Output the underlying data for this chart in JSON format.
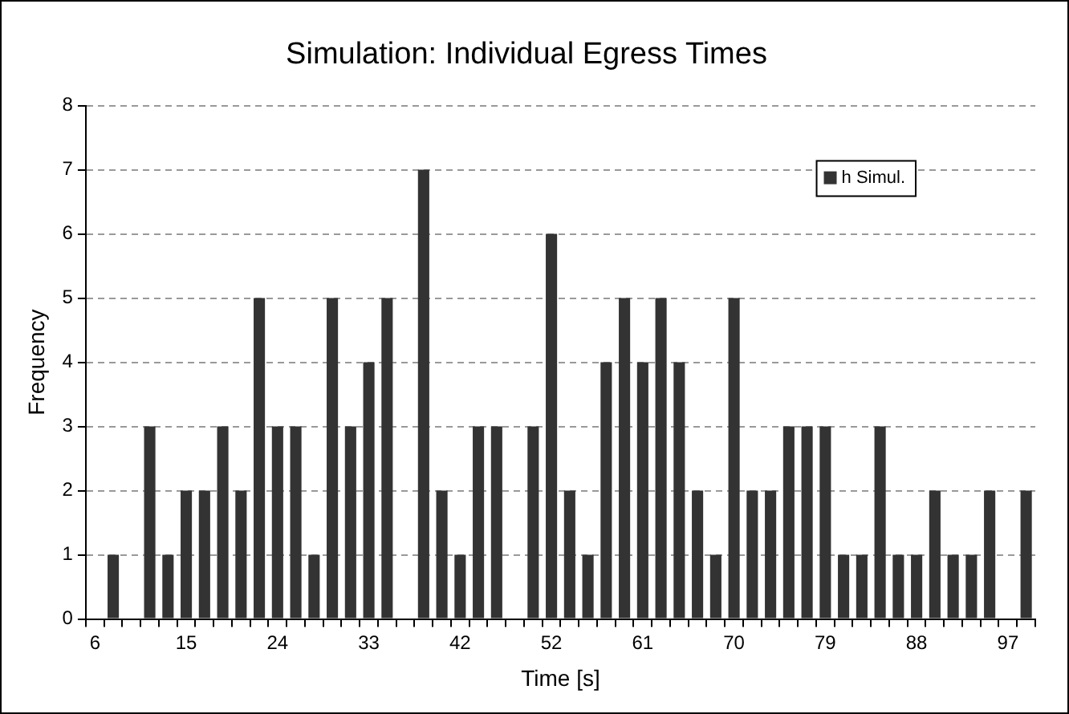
{
  "chart_data": {
    "type": "bar",
    "title": "Simulation: Individual Egress Times",
    "xlabel": "Time [s]",
    "ylabel": "Frequency",
    "categories": [
      "6",
      null,
      null,
      null,
      null,
      "15",
      null,
      null,
      null,
      null,
      "24",
      null,
      null,
      null,
      null,
      "33",
      null,
      null,
      null,
      null,
      "42",
      null,
      null,
      null,
      null,
      "52",
      null,
      null,
      null,
      null,
      "61",
      null,
      null,
      null,
      null,
      "70",
      null,
      null,
      null,
      null,
      "79",
      null,
      null,
      null,
      null,
      "88",
      null,
      null,
      null,
      null,
      "97",
      null
    ],
    "series": [
      {
        "name": "h Simul.",
        "color": "#333333",
        "values": [
          0,
          1,
          0,
          3,
          1,
          2,
          2,
          3,
          2,
          5,
          3,
          3,
          1,
          5,
          3,
          4,
          5,
          0,
          7,
          2,
          1,
          3,
          3,
          0,
          3,
          6,
          2,
          1,
          4,
          5,
          4,
          5,
          4,
          2,
          1,
          5,
          2,
          2,
          3,
          3,
          3,
          1,
          1,
          3,
          1,
          1,
          2,
          1,
          1,
          2,
          0,
          2
        ]
      }
    ],
    "ylim": [
      0,
      8
    ],
    "yticks": [
      0,
      1,
      2,
      3,
      4,
      5,
      6,
      7,
      8
    ],
    "grid": "y",
    "legend": "top right"
  }
}
